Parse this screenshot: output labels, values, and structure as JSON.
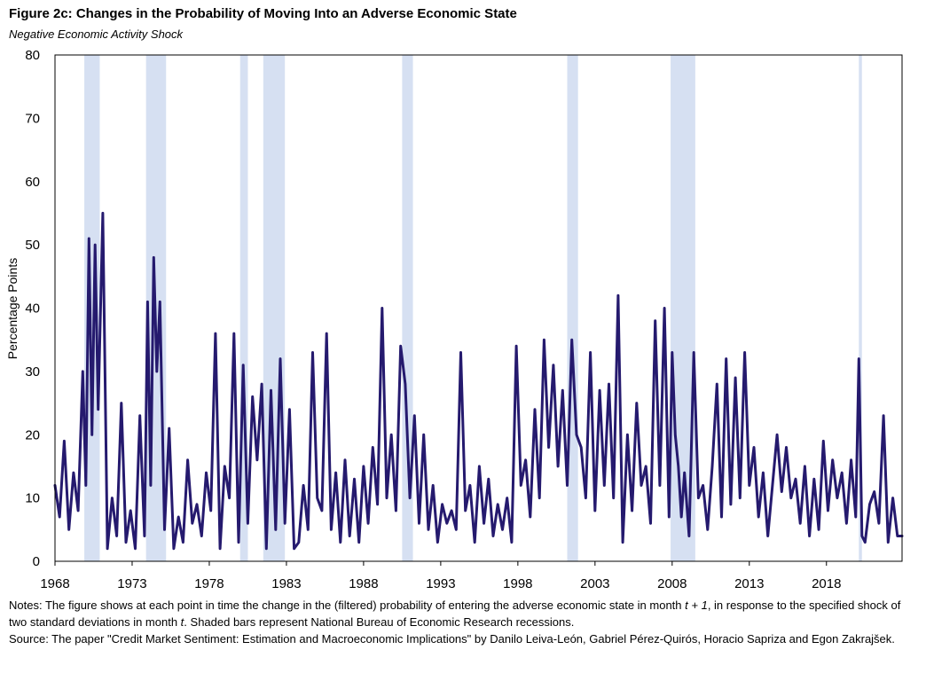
{
  "title": "Figure 2c: Changes in the Probability of Moving Into an Adverse Economic State",
  "subtitle": "Negative Economic Activity Shock",
  "colors": {
    "line": "#251a6e",
    "recession": "#d6e0f2",
    "frame": "#000000"
  },
  "notes": {
    "notes_prefix": "Notes: The figure shows at each point in time the change in the (filtered) probability of entering the adverse economic state in month ",
    "t1": "t + 1",
    "notes_mid": ",  in response to the specified shock of two standard deviations in month ",
    "t": "t",
    "notes_suffix": ". Shaded  bars represent National Bureau of Economic Research recessions.",
    "source": "Source: The paper \"Credit Market Sentiment: Estimation and Macroeconomic Implications\" by Danilo Leiva-León, Gabriel Pérez-Quirós, Horacio Sapriza and Egon Zakrajšek."
  },
  "chart_data": {
    "type": "line",
    "title": "Figure 2c: Changes in the Probability of Moving Into an Adverse Economic State",
    "subtitle": "Negative Economic Activity Shock",
    "xlabel": "",
    "ylabel": "Percentage Points",
    "xlim": [
      1968.0,
      2022.9
    ],
    "ylim": [
      0,
      80
    ],
    "yticks": [
      0,
      10,
      20,
      30,
      40,
      50,
      60,
      70,
      80
    ],
    "xticks": [
      1968,
      1973,
      1978,
      1983,
      1988,
      1993,
      1998,
      2003,
      2008,
      2013,
      2018
    ],
    "grid": false,
    "legend": "none",
    "recessions": [
      [
        1969.9,
        1970.9
      ],
      [
        1973.9,
        1975.2
      ],
      [
        1980.0,
        1980.5
      ],
      [
        1981.5,
        1982.9
      ],
      [
        1990.5,
        1991.2
      ],
      [
        2001.2,
        2001.9
      ],
      [
        2007.9,
        2009.5
      ],
      [
        2020.1,
        2020.3
      ]
    ],
    "series": [
      {
        "x": [
          1968.0,
          1968.3,
          1968.6,
          1968.9,
          1969.2,
          1969.5,
          1969.8,
          1970.0,
          1970.2,
          1970.4,
          1970.6,
          1970.8,
          1971.1,
          1971.4,
          1971.7,
          1972.0,
          1972.3,
          1972.6,
          1972.9,
          1973.2,
          1973.5,
          1973.8,
          1974.0,
          1974.2,
          1974.4,
          1974.6,
          1974.8,
          1975.1,
          1975.4,
          1975.7,
          1976.0,
          1976.3,
          1976.6,
          1976.9,
          1977.2,
          1977.5,
          1977.8,
          1978.1,
          1978.4,
          1978.7,
          1979.0,
          1979.3,
          1979.6,
          1979.9,
          1980.2,
          1980.5,
          1980.8,
          1981.1,
          1981.4,
          1981.7,
          1982.0,
          1982.3,
          1982.6,
          1982.9,
          1983.2,
          1983.5,
          1983.8,
          1984.1,
          1984.4,
          1984.7,
          1985.0,
          1985.3,
          1985.6,
          1985.9,
          1986.2,
          1986.5,
          1986.8,
          1987.1,
          1987.4,
          1987.7,
          1988.0,
          1988.3,
          1988.6,
          1988.9,
          1989.2,
          1989.5,
          1989.8,
          1990.1,
          1990.4,
          1990.7,
          1991.0,
          1991.3,
          1991.6,
          1991.9,
          1992.2,
          1992.5,
          1992.8,
          1993.1,
          1993.4,
          1993.7,
          1994.0,
          1994.3,
          1994.6,
          1994.9,
          1995.2,
          1995.5,
          1995.8,
          1996.1,
          1996.4,
          1996.7,
          1997.0,
          1997.3,
          1997.6,
          1997.9,
          1998.2,
          1998.5,
          1998.8,
          1999.1,
          1999.4,
          1999.7,
          2000.0,
          2000.3,
          2000.6,
          2000.9,
          2001.2,
          2001.5,
          2001.8,
          2002.1,
          2002.4,
          2002.7,
          2003.0,
          2003.3,
          2003.6,
          2003.9,
          2004.2,
          2004.5,
          2004.8,
          2005.1,
          2005.4,
          2005.7,
          2006.0,
          2006.3,
          2006.6,
          2006.9,
          2007.2,
          2007.5,
          2007.8,
          2008.0,
          2008.2,
          2008.4,
          2008.6,
          2008.8,
          2009.1,
          2009.4,
          2009.7,
          2010.0,
          2010.3,
          2010.6,
          2010.9,
          2011.2,
          2011.5,
          2011.8,
          2012.1,
          2012.4,
          2012.7,
          2013.0,
          2013.3,
          2013.6,
          2013.9,
          2014.2,
          2014.5,
          2014.8,
          2015.1,
          2015.4,
          2015.7,
          2016.0,
          2016.3,
          2016.6,
          2016.9,
          2017.2,
          2017.5,
          2017.8,
          2018.1,
          2018.4,
          2018.7,
          2019.0,
          2019.3,
          2019.6,
          2019.9,
          2020.1,
          2020.3,
          2020.5,
          2020.8,
          2021.1,
          2021.4,
          2021.7,
          2022.0,
          2022.3,
          2022.6,
          2022.9
        ],
        "y": [
          12,
          7,
          19,
          5,
          14,
          8,
          30,
          12,
          51,
          20,
          50,
          24,
          55,
          2,
          10,
          4,
          25,
          3,
          8,
          2,
          23,
          4,
          41,
          12,
          48,
          30,
          41,
          5,
          21,
          2,
          7,
          3,
          16,
          6,
          9,
          4,
          14,
          8,
          36,
          2,
          15,
          10,
          36,
          3,
          31,
          6,
          26,
          16,
          28,
          2,
          27,
          5,
          32,
          6,
          24,
          2,
          3,
          12,
          5,
          33,
          10,
          8,
          36,
          5,
          14,
          3,
          16,
          4,
          13,
          3,
          15,
          6,
          18,
          9,
          40,
          10,
          20,
          8,
          34,
          28,
          10,
          23,
          6,
          20,
          5,
          12,
          3,
          9,
          6,
          8,
          5,
          33,
          8,
          12,
          3,
          15,
          6,
          13,
          4,
          9,
          5,
          10,
          3,
          34,
          12,
          16,
          7,
          24,
          10,
          35,
          18,
          31,
          15,
          27,
          12,
          35,
          20,
          18,
          10,
          33,
          8,
          27,
          12,
          28,
          10,
          42,
          3,
          20,
          8,
          25,
          12,
          15,
          6,
          38,
          12,
          40,
          7,
          33,
          20,
          15,
          7,
          14,
          4,
          33,
          10,
          12,
          5,
          15,
          28,
          7,
          32,
          9,
          29,
          10,
          33,
          12,
          18,
          7,
          14,
          4,
          12,
          20,
          11,
          18,
          10,
          13,
          6,
          15,
          4,
          13,
          5,
          19,
          8,
          16,
          10,
          14,
          6,
          16,
          7,
          32,
          4,
          3,
          9,
          11,
          6,
          23,
          3,
          10,
          4,
          4
        ]
      }
    ]
  }
}
